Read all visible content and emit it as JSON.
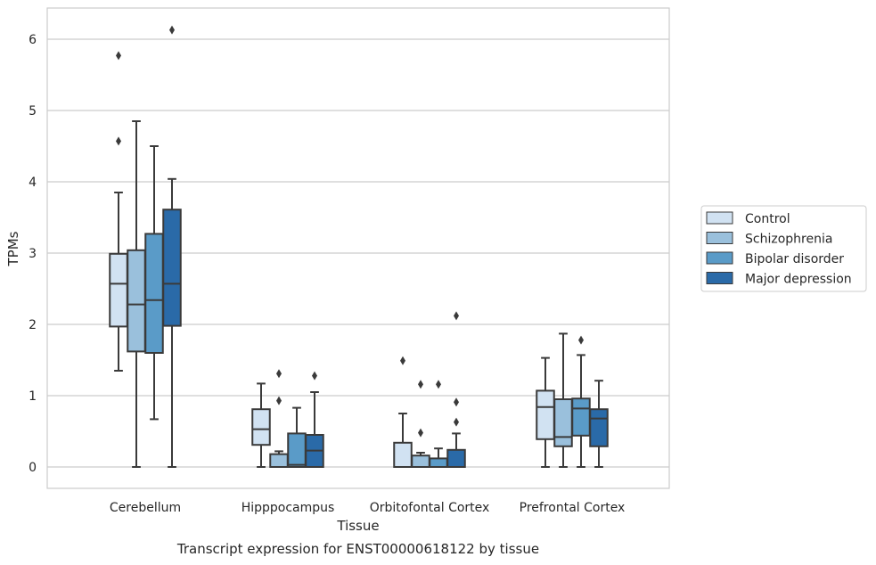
{
  "chart_data": {
    "type": "boxplot",
    "title": "Transcript expression for ENST00000618122 by tissue",
    "xlabel": "Tissue",
    "ylabel": "TPMs",
    "ylim": [
      -0.3,
      6.45
    ],
    "yticks": [
      0,
      1,
      2,
      3,
      4,
      5,
      6
    ],
    "grid": "horizontal",
    "legend_position": "right",
    "categories": [
      "Cerebellum",
      "Hipppocampus",
      "Orbitofontal Cortex",
      "Prefrontal Cortex"
    ],
    "series": [
      {
        "name": "Control",
        "color": "#d1e2f2",
        "boxes": [
          {
            "whislo": 1.35,
            "q1": 1.97,
            "med": 2.57,
            "q3": 2.99,
            "whishi": 3.85,
            "fliers": [
              4.57,
              5.77
            ]
          },
          {
            "whislo": 0.0,
            "q1": 0.31,
            "med": 0.53,
            "q3": 0.81,
            "whishi": 1.17,
            "fliers": []
          },
          {
            "whislo": 0.0,
            "q1": 0.0,
            "med": 0.0,
            "q3": 0.34,
            "whishi": 0.75,
            "fliers": [
              1.49
            ]
          },
          {
            "whislo": 0.0,
            "q1": 0.39,
            "med": 0.84,
            "q3": 1.07,
            "whishi": 1.53,
            "fliers": []
          }
        ]
      },
      {
        "name": "Schizophrenia",
        "color": "#9ac0dc",
        "boxes": [
          {
            "whislo": 0.0,
            "q1": 1.62,
            "med": 2.28,
            "q3": 3.04,
            "whishi": 4.85,
            "fliers": []
          },
          {
            "whislo": 0.0,
            "q1": 0.0,
            "med": 0.0,
            "q3": 0.18,
            "whishi": 0.22,
            "fliers": [
              0.93,
              1.31
            ]
          },
          {
            "whislo": 0.0,
            "q1": 0.0,
            "med": 0.0,
            "q3": 0.16,
            "whishi": 0.2,
            "fliers": [
              0.48,
              1.16
            ]
          },
          {
            "whislo": 0.0,
            "q1": 0.29,
            "med": 0.42,
            "q3": 0.95,
            "whishi": 1.87,
            "fliers": []
          }
        ]
      },
      {
        "name": "Bipolar disorder",
        "color": "#5a9bc8",
        "boxes": [
          {
            "whislo": 0.67,
            "q1": 1.6,
            "med": 2.34,
            "q3": 3.27,
            "whishi": 4.5,
            "fliers": []
          },
          {
            "whislo": 0.0,
            "q1": 0.0,
            "med": 0.03,
            "q3": 0.47,
            "whishi": 0.83,
            "fliers": []
          },
          {
            "whislo": 0.0,
            "q1": 0.0,
            "med": 0.0,
            "q3": 0.12,
            "whishi": 0.26,
            "fliers": [
              1.16
            ]
          },
          {
            "whislo": 0.0,
            "q1": 0.44,
            "med": 0.82,
            "q3": 0.96,
            "whishi": 1.57,
            "fliers": [
              1.78
            ]
          }
        ]
      },
      {
        "name": "Major depression",
        "color": "#2a6aa8",
        "boxes": [
          {
            "whislo": 0.0,
            "q1": 1.98,
            "med": 2.57,
            "q3": 3.61,
            "whishi": 4.04,
            "fliers": [
              6.13
            ]
          },
          {
            "whislo": 0.0,
            "q1": 0.0,
            "med": 0.23,
            "q3": 0.45,
            "whishi": 1.05,
            "fliers": [
              1.28
            ]
          },
          {
            "whislo": 0.0,
            "q1": 0.0,
            "med": 0.0,
            "q3": 0.24,
            "whishi": 0.47,
            "fliers": [
              0.63,
              0.91,
              2.12
            ]
          },
          {
            "whislo": 0.0,
            "q1": 0.29,
            "med": 0.68,
            "q3": 0.81,
            "whishi": 1.21,
            "fliers": []
          }
        ]
      }
    ]
  }
}
